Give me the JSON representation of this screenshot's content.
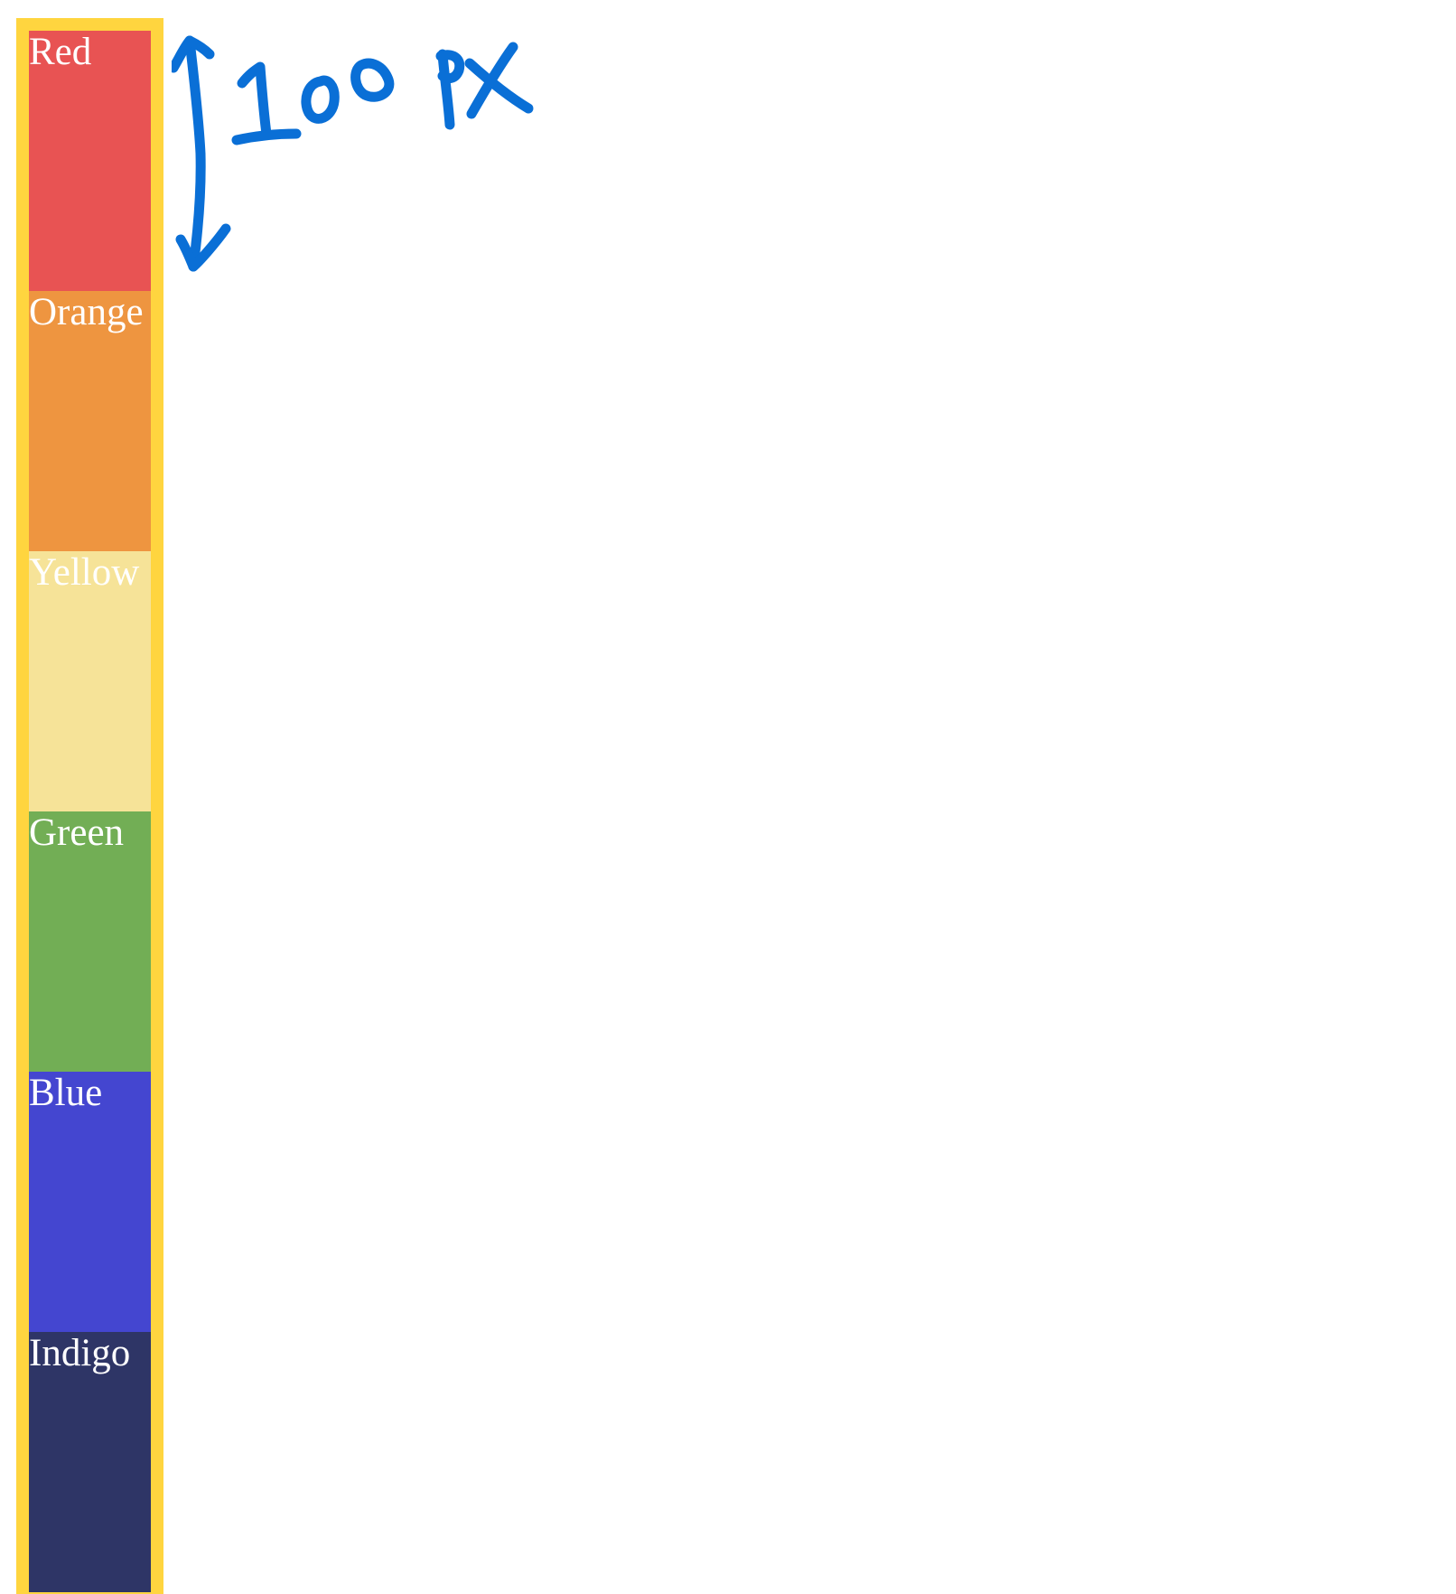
{
  "strips": [
    {
      "label": "Red",
      "color": "#e85353"
    },
    {
      "label": "Orange",
      "color": "#ee9540"
    },
    {
      "label": "Yellow",
      "color": "#f6e398"
    },
    {
      "label": "Green",
      "color": "#72ae55"
    },
    {
      "label": "Blue",
      "color": "#4446d0"
    },
    {
      "label": "Indigo",
      "color": "#2e3566"
    }
  ],
  "container": {
    "border_color": "#ffd53f"
  },
  "annotation": {
    "text": "100 PX",
    "color": "#0a6fd6"
  }
}
